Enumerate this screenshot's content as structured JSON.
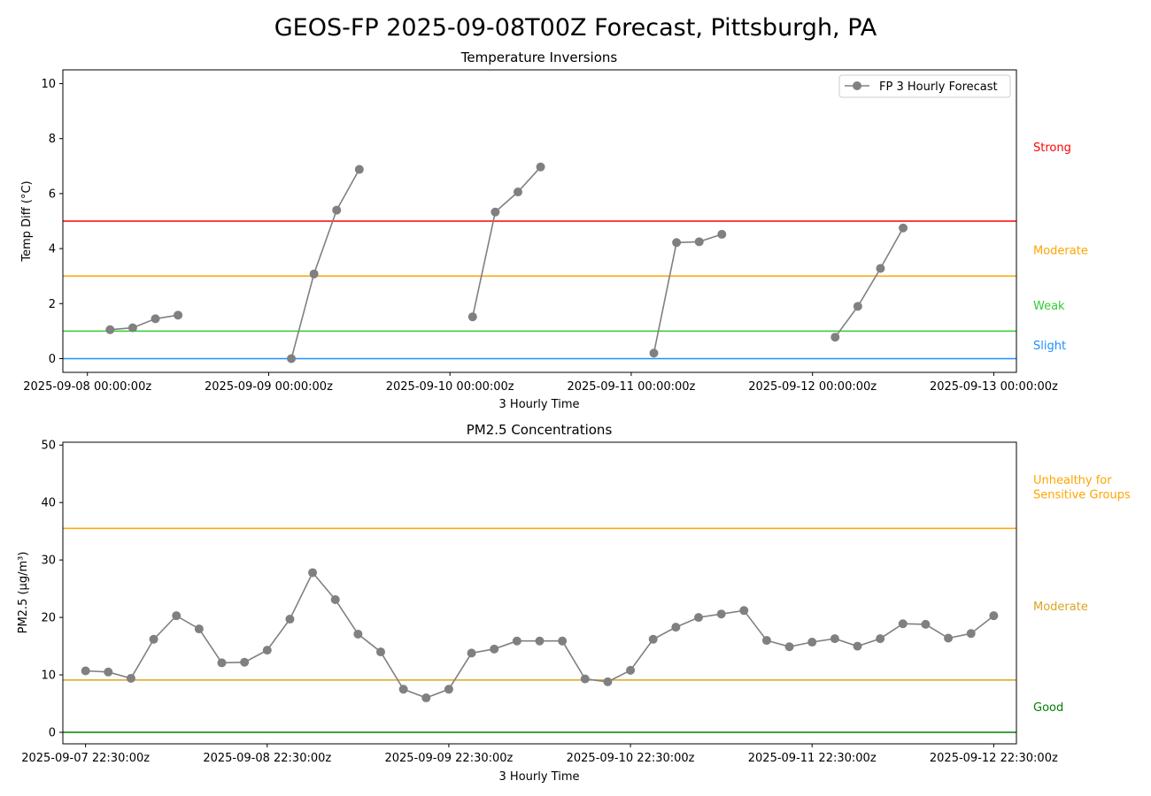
{
  "suptitle": "GEOS-FP 2025-09-08T00Z Forecast, Pittsburgh, PA",
  "chart_data": [
    {
      "type": "line",
      "title": "Temperature Inversions",
      "xlabel": "3 Hourly Time",
      "ylabel": "Temp Diff (°C)",
      "xlim": [
        "2025-09-07T20:45:00Z",
        "2025-09-13T03:00:00Z"
      ],
      "ylim": [
        -0.5,
        10.5
      ],
      "yticks": [
        0,
        2,
        4,
        6,
        8,
        10
      ],
      "xticks": [
        {
          "t": "2025-09-08T00:00:00Z",
          "label": "2025-09-08 00:00:00z"
        },
        {
          "t": "2025-09-09T00:00:00Z",
          "label": "2025-09-09 00:00:00z"
        },
        {
          "t": "2025-09-10T00:00:00Z",
          "label": "2025-09-10 00:00:00z"
        },
        {
          "t": "2025-09-11T00:00:00Z",
          "label": "2025-09-11 00:00:00z"
        },
        {
          "t": "2025-09-12T00:00:00Z",
          "label": "2025-09-12 00:00:00z"
        },
        {
          "t": "2025-09-13T00:00:00Z",
          "label": "2025-09-13 00:00:00z"
        }
      ],
      "legend": {
        "label": "FP 3 Hourly Forecast",
        "position": "upper-right"
      },
      "series_color": "#808080",
      "segments": [
        [
          {
            "t": "2025-09-08T03:00:00Z",
            "y": 1.05
          },
          {
            "t": "2025-09-08T06:00:00Z",
            "y": 1.12
          },
          {
            "t": "2025-09-08T09:00:00Z",
            "y": 1.45
          },
          {
            "t": "2025-09-08T12:00:00Z",
            "y": 1.58
          }
        ],
        [
          {
            "t": "2025-09-09T03:00:00Z",
            "y": 0.0
          },
          {
            "t": "2025-09-09T06:00:00Z",
            "y": 3.08
          },
          {
            "t": "2025-09-09T09:00:00Z",
            "y": 5.4
          },
          {
            "t": "2025-09-09T12:00:00Z",
            "y": 6.88
          }
        ],
        [
          {
            "t": "2025-09-10T03:00:00Z",
            "y": 1.52
          },
          {
            "t": "2025-09-10T06:00:00Z",
            "y": 5.33
          },
          {
            "t": "2025-09-10T09:00:00Z",
            "y": 6.06
          },
          {
            "t": "2025-09-10T12:00:00Z",
            "y": 6.97
          }
        ],
        [
          {
            "t": "2025-09-11T03:00:00Z",
            "y": 0.2
          },
          {
            "t": "2025-09-11T06:00:00Z",
            "y": 4.22
          },
          {
            "t": "2025-09-11T09:00:00Z",
            "y": 4.25
          },
          {
            "t": "2025-09-11T12:00:00Z",
            "y": 4.52
          }
        ],
        [
          {
            "t": "2025-09-12T03:00:00Z",
            "y": 0.78
          },
          {
            "t": "2025-09-12T06:00:00Z",
            "y": 1.9
          },
          {
            "t": "2025-09-12T09:00:00Z",
            "y": 3.28
          },
          {
            "t": "2025-09-12T12:00:00Z",
            "y": 4.75
          }
        ]
      ],
      "thresholds": [
        {
          "y": 5,
          "color": "#ff0000"
        },
        {
          "y": 3,
          "color": "#ffa500"
        },
        {
          "y": 1,
          "color": "#32cd32"
        },
        {
          "y": 0,
          "color": "#1e90ff"
        }
      ],
      "side_labels": [
        {
          "text": "Strong",
          "y": 7.7,
          "color": "#ff0000"
        },
        {
          "text": "Moderate",
          "y": 3.95,
          "color": "#ffa500"
        },
        {
          "text": "Weak",
          "y": 1.95,
          "color": "#32cd32"
        },
        {
          "text": "Slight",
          "y": 0.5,
          "color": "#1e90ff"
        }
      ]
    },
    {
      "type": "line",
      "title": "PM2.5 Concentrations",
      "xlabel": "3 Hourly Time",
      "ylabel": "PM2.5 (µg/m³)",
      "xlim": [
        "2025-09-07T19:30:00Z",
        "2025-09-13T01:30:00Z"
      ],
      "ylim": [
        -2,
        50.5
      ],
      "yticks": [
        0,
        10,
        20,
        30,
        40,
        50
      ],
      "xticks": [
        {
          "t": "2025-09-07T22:30:00Z",
          "label": "2025-09-07 22:30:00z"
        },
        {
          "t": "2025-09-08T22:30:00Z",
          "label": "2025-09-08 22:30:00z"
        },
        {
          "t": "2025-09-09T22:30:00Z",
          "label": "2025-09-09 22:30:00z"
        },
        {
          "t": "2025-09-10T22:30:00Z",
          "label": "2025-09-10 22:30:00z"
        },
        {
          "t": "2025-09-11T22:30:00Z",
          "label": "2025-09-11 22:30:00z"
        },
        {
          "t": "2025-09-12T22:30:00Z",
          "label": "2025-09-12 22:30:00z"
        }
      ],
      "series_color": "#808080",
      "x_start": "2025-09-07T22:30:00Z",
      "x_step_hours": 3,
      "values": [
        10.7,
        10.5,
        9.4,
        16.2,
        20.3,
        18.0,
        12.1,
        12.2,
        14.3,
        19.7,
        27.8,
        23.1,
        17.1,
        14.0,
        7.5,
        6.0,
        7.5,
        13.8,
        14.5,
        15.9,
        15.9,
        15.9,
        9.3,
        8.8,
        10.8,
        16.2,
        18.3,
        20.0,
        20.6,
        21.2,
        16.0,
        14.9,
        15.7,
        16.3,
        15.0,
        16.3,
        18.9,
        18.8,
        16.4,
        17.2,
        20.3
      ],
      "thresholds": [
        {
          "y": 35.5,
          "color": "#ffa500"
        },
        {
          "y": 9.1,
          "color": "#daa520"
        },
        {
          "y": 0,
          "color": "#008000"
        }
      ],
      "side_labels": [
        {
          "text": "Unhealthy for",
          "y": 44.0,
          "color": "#ffa500"
        },
        {
          "text": "Sensitive Groups",
          "y": 41.5,
          "color": "#ffa500"
        },
        {
          "text": "Moderate",
          "y": 22.0,
          "color": "#daa520"
        },
        {
          "text": "Good",
          "y": 4.5,
          "color": "#008000"
        }
      ]
    }
  ]
}
